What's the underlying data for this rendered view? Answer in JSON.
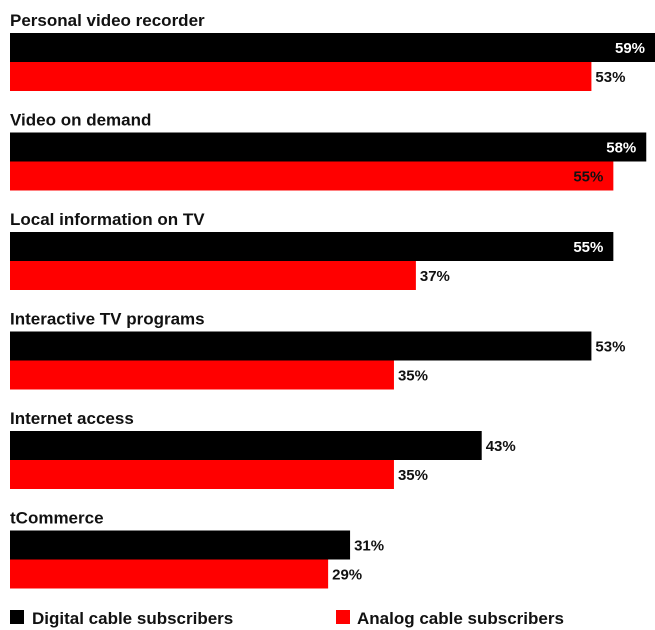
{
  "chart_data": {
    "type": "bar",
    "orientation": "horizontal",
    "categories": [
      "Personal video recorder",
      "Video on demand",
      "Local information on TV",
      "Interactive TV programs",
      "Internet access",
      "tCommerce"
    ],
    "series": [
      {
        "name": "Digital cable subscribers",
        "color": "#000000",
        "values": [
          59,
          58,
          55,
          53,
          43,
          31
        ],
        "labels": [
          "59%",
          "58%",
          "55%",
          "53%",
          "43%",
          "31%"
        ]
      },
      {
        "name": "Analog cable subscribers",
        "color": "#ff0000",
        "values": [
          53,
          55,
          37,
          35,
          35,
          29
        ],
        "labels": [
          "53%",
          "55%",
          "37%",
          "35%",
          "35%",
          "29%"
        ]
      }
    ],
    "xlim": [
      0,
      60
    ],
    "grid": false,
    "legend_position": "bottom"
  }
}
